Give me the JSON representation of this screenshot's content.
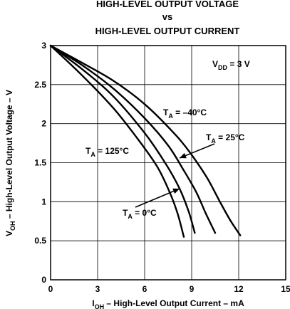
{
  "chart_data": {
    "type": "line",
    "title_lines": [
      "HIGH-LEVEL OUTPUT VOLTAGE",
      "vs",
      "HIGH-LEVEL OUTPUT CURRENT"
    ],
    "xlabel": {
      "main": "I",
      "sub": "OH",
      "rest": " – High-Level Output Current – mA"
    },
    "ylabel": {
      "main": "V",
      "sub": "OH",
      "rest": " – High-Level Output Voltage – V"
    },
    "xlim": [
      0,
      15
    ],
    "ylim": [
      0,
      3
    ],
    "xticks": [
      0,
      3,
      6,
      9,
      12,
      15
    ],
    "yticks": [
      0,
      0.5,
      1,
      1.5,
      2,
      2.5,
      3
    ],
    "ytick_labels": [
      "0",
      "0.5",
      "1",
      "1.5",
      "2",
      "2.5",
      "3"
    ],
    "grid": true,
    "condition": {
      "main": "V",
      "sub": "DD",
      "rest": " = 3 V"
    },
    "series": [
      {
        "name": "T_A = -40°C",
        "label": {
          "main": "T",
          "sub": "A",
          "rest": " = –40°C"
        },
        "x": [
          0,
          2,
          4,
          6,
          8,
          9,
          10,
          10.8,
          11.5,
          12.1
        ],
        "y": [
          3,
          2.78,
          2.55,
          2.25,
          1.85,
          1.6,
          1.3,
          1.0,
          0.75,
          0.57
        ]
      },
      {
        "name": "T_A = 25°C",
        "label": {
          "main": "T",
          "sub": "A",
          "rest": " = 25°C"
        },
        "x": [
          0,
          2,
          4,
          6,
          7.5,
          8.5,
          9.3,
          9.9,
          10.5
        ],
        "y": [
          3,
          2.75,
          2.45,
          2.07,
          1.72,
          1.4,
          1.12,
          0.85,
          0.6
        ]
      },
      {
        "name": "T_A = 0°C",
        "label": {
          "main": "T",
          "sub": "A",
          "rest": " = 0°C"
        },
        "x": [
          0,
          2,
          4,
          6,
          7.3,
          8.2,
          8.8,
          9.2
        ],
        "y": [
          3,
          2.7,
          2.35,
          1.88,
          1.5,
          1.18,
          0.88,
          0.6
        ]
      },
      {
        "name": "T_A = 125°C",
        "label": {
          "main": "T",
          "sub": "A",
          "rest": " = 125°C"
        },
        "x": [
          0,
          2,
          4,
          5.5,
          6.8,
          7.6,
          8.1,
          8.5
        ],
        "y": [
          3,
          2.62,
          2.2,
          1.82,
          1.45,
          1.12,
          0.85,
          0.55
        ]
      }
    ]
  }
}
